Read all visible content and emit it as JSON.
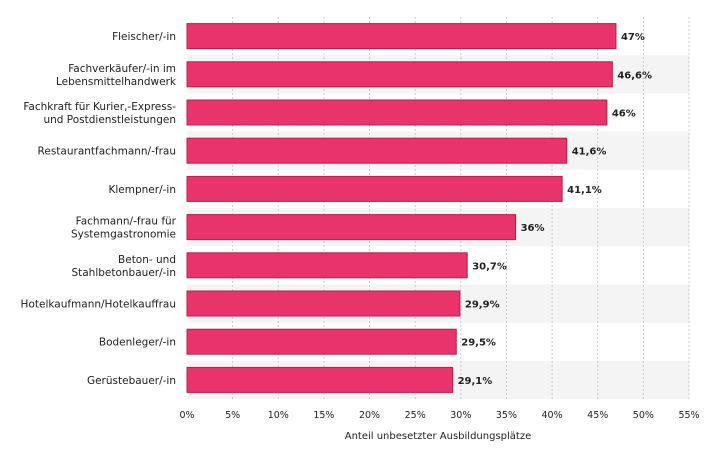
{
  "chart_data": {
    "type": "bar",
    "orientation": "horizontal",
    "categories": [
      [
        "Fleischer/-in"
      ],
      [
        "Fachverkäufer/-in im",
        "Lebensmittelhandwerk"
      ],
      [
        "Fachkraft für Kurier,-Express-",
        "und Postdienstleistungen"
      ],
      [
        "Restaurantfachmann/-frau"
      ],
      [
        "Klempner/-in"
      ],
      [
        "Fachmann/-frau für",
        "Systemgastronomie"
      ],
      [
        "Beton- und",
        "Stahlbetonbauer/-in"
      ],
      [
        "Hotelkaufmann/Hotelkauffrau"
      ],
      [
        "Bodenleger/-in"
      ],
      [
        "Gerüstebauer/-in"
      ]
    ],
    "values": [
      47,
      46.6,
      46,
      41.6,
      41.1,
      36,
      30.7,
      29.9,
      29.5,
      29.1
    ],
    "value_labels": [
      "47%",
      "46,6%",
      "46%",
      "41,6%",
      "41,1%",
      "36%",
      "30,7%",
      "29,9%",
      "29,5%",
      "29,1%"
    ],
    "xlim": [
      0,
      55
    ],
    "x_ticks": [
      0,
      5,
      10,
      15,
      20,
      25,
      30,
      35,
      40,
      45,
      50,
      55
    ],
    "x_tick_labels": [
      "0%",
      "5%",
      "10%",
      "15%",
      "20%",
      "25%",
      "30%",
      "35%",
      "40%",
      "45%",
      "50%",
      "55%"
    ],
    "xlabel": "Anteil unbesetzter Ausbildungsplätze",
    "ylabel": "",
    "title": "",
    "grid": true,
    "legend": false,
    "colors": {
      "bar": "#e8336b",
      "bar_stroke": "#b81f4c",
      "band": "#f4f4f4",
      "grid": "#cccccc"
    }
  }
}
